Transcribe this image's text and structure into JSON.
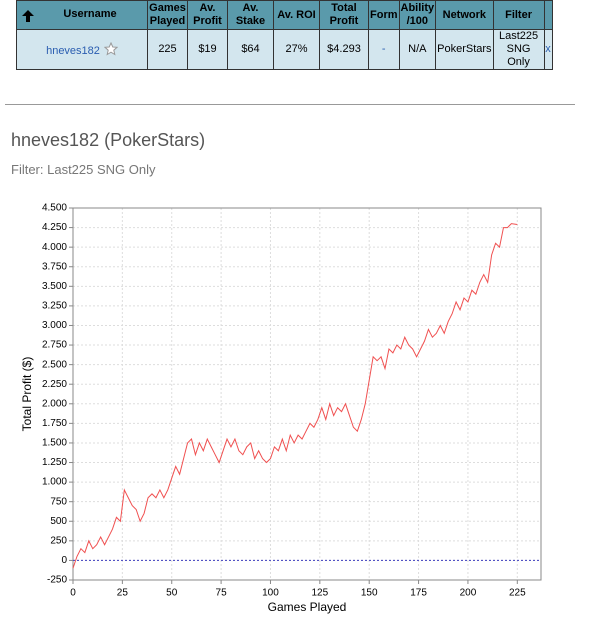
{
  "table": {
    "headers": [
      "Username",
      "Games Played",
      "Av. Profit",
      "Av. Stake",
      "Av. ROI",
      "Total Profit",
      "Form",
      "Ability /100",
      "Network",
      "Filter"
    ],
    "rows": [
      [
        "hneves182",
        "225",
        "$19",
        "$64",
        "27%",
        "$4.293",
        "-",
        "N/A",
        "PokerStars",
        "Last225 SNG Only",
        "x"
      ]
    ]
  },
  "profile": {
    "title": "hneves182 (PokerStars)",
    "filter": "Filter: Last225 SNG Only"
  },
  "chart_data": {
    "type": "line",
    "x_label": "Games Played",
    "y_label": "Total Profit ($)",
    "color": "#f05050",
    "grid": true,
    "x": [
      0,
      2,
      4,
      6,
      8,
      10,
      12,
      14,
      16,
      18,
      20,
      22,
      24,
      26,
      28,
      30,
      32,
      34,
      36,
      38,
      40,
      42,
      44,
      46,
      48,
      50,
      52,
      54,
      56,
      58,
      60,
      62,
      64,
      66,
      68,
      70,
      72,
      74,
      76,
      78,
      80,
      82,
      84,
      86,
      88,
      90,
      92,
      94,
      96,
      98,
      100,
      102,
      104,
      106,
      108,
      110,
      112,
      114,
      116,
      118,
      120,
      122,
      124,
      126,
      128,
      130,
      132,
      134,
      136,
      138,
      140,
      142,
      144,
      146,
      148,
      150,
      152,
      154,
      156,
      158,
      160,
      162,
      164,
      166,
      168,
      170,
      172,
      174,
      176,
      178,
      180,
      182,
      184,
      186,
      188,
      190,
      192,
      194,
      196,
      198,
      200,
      202,
      204,
      206,
      208,
      210,
      212,
      214,
      216,
      218,
      220,
      222,
      225
    ],
    "values": [
      -100,
      50,
      150,
      100,
      250,
      150,
      200,
      300,
      200,
      300,
      400,
      550,
      500,
      900,
      800,
      700,
      650,
      500,
      600,
      800,
      850,
      800,
      900,
      800,
      900,
      1050,
      1200,
      1100,
      1300,
      1500,
      1550,
      1350,
      1500,
      1400,
      1550,
      1450,
      1350,
      1250,
      1400,
      1550,
      1450,
      1550,
      1400,
      1350,
      1450,
      1500,
      1300,
      1400,
      1300,
      1250,
      1300,
      1450,
      1400,
      1550,
      1400,
      1600,
      1500,
      1600,
      1550,
      1650,
      1750,
      1700,
      1800,
      1950,
      1800,
      2000,
      1850,
      1950,
      1900,
      2000,
      1850,
      1700,
      1650,
      1800,
      2000,
      2300,
      2600,
      2550,
      2600,
      2450,
      2700,
      2650,
      2750,
      2700,
      2850,
      2750,
      2700,
      2600,
      2700,
      2800,
      2950,
      2850,
      2900,
      3000,
      2900,
      3050,
      3150,
      3300,
      3200,
      3350,
      3300,
      3450,
      3400,
      3550,
      3650,
      3550,
      3900,
      4050,
      4000,
      4250,
      4250,
      4300,
      4290
    ],
    "xlim": [
      0,
      237
    ],
    "xticks": [
      0,
      25,
      50,
      75,
      100,
      125,
      150,
      175,
      200,
      225
    ],
    "ylim": [
      -250,
      4500
    ],
    "yticks": [
      -250,
      0,
      250,
      500,
      750,
      {
        "value": 1000,
        "label": "1.000"
      },
      {
        "value": 1250,
        "label": "1.250"
      },
      {
        "value": 1500,
        "label": "1.500"
      },
      {
        "value": 1750,
        "label": "1.750"
      },
      {
        "value": 2000,
        "label": "2.000"
      },
      {
        "value": 2250,
        "label": "2.250"
      },
      {
        "value": 2500,
        "label": "2.500"
      },
      {
        "value": 2750,
        "label": "2.750"
      },
      {
        "value": 3000,
        "label": "3.000"
      },
      {
        "value": 3250,
        "label": "3.250"
      },
      {
        "value": 3500,
        "label": "3.500"
      },
      {
        "value": 3750,
        "label": "3.750"
      },
      {
        "value": 4000,
        "label": "4.000"
      },
      {
        "value": 4250,
        "label": "4.250"
      },
      {
        "value": 4500,
        "label": "4.500"
      }
    ]
  }
}
